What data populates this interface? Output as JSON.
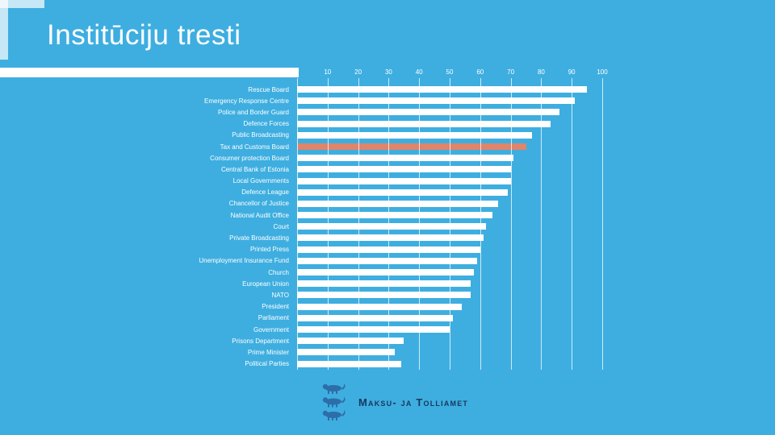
{
  "slide": {
    "title": "Institūciju tresti"
  },
  "colors": {
    "background": "#3EAEE0",
    "bar": "#FFFFFF",
    "highlight": "#E0846A",
    "text": "#FFFFFF",
    "logo_text": "#16395C",
    "logo_emblem": "#2D6EA8"
  },
  "chart_data": {
    "type": "bar",
    "orientation": "horizontal",
    "title": "",
    "xlabel": "",
    "ylabel": "",
    "xlim": [
      0,
      100
    ],
    "ticks": [
      0,
      10,
      20,
      30,
      40,
      50,
      60,
      70,
      80,
      90,
      100
    ],
    "grid": true,
    "legend": "none",
    "highlight_category": "Tax and Customs Board",
    "categories": [
      "Rescue Board",
      "Emergency Response Centre",
      "Police and Border Guard",
      "Defence Forces",
      "Public Broadcasting",
      "Tax and Customs Board",
      "Consumer protection Board",
      "Central Bank of Estonia",
      "Local Governments",
      "Defence League",
      "Chancellor of Justice",
      "National Audit Office",
      "Court",
      "Private Broadcasting",
      "Printed Press",
      "Unemployment Insurance Fund",
      "Church",
      "European Union",
      "NATO",
      "President",
      "Parliament",
      "Government",
      "Prisons Department",
      "Prime Minister",
      "Political Parties"
    ],
    "values": [
      95,
      91,
      86,
      83,
      77,
      75,
      71,
      70,
      70,
      69,
      66,
      64,
      62,
      61,
      60,
      59,
      58,
      57,
      57,
      54,
      51,
      50,
      35,
      32,
      34
    ]
  },
  "footer": {
    "logo_text": "Maksu- ja Tolliamet",
    "logo_icon": "estonia-three-lions-emblem"
  }
}
